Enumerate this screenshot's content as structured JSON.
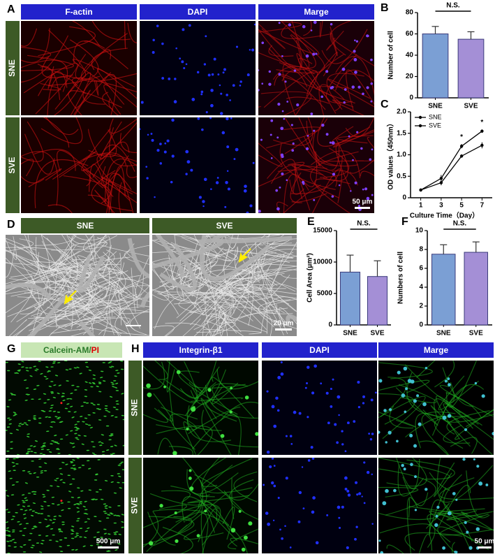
{
  "panels": {
    "A": {
      "label": "A",
      "headers": [
        "F-actin",
        "DAPI",
        "Marge"
      ],
      "rows": [
        "SNE",
        "SVE"
      ],
      "scale": "50 μm"
    },
    "D": {
      "label": "D",
      "headers": [
        "SNE",
        "SVE"
      ],
      "scale": "20 μm"
    },
    "G": {
      "label": "G",
      "header_parts": [
        "Calcein-AM/",
        "PI"
      ],
      "scale": "500 μm"
    },
    "H": {
      "label": "H",
      "headers": [
        "Integrin-β1",
        "DAPI",
        "Marge"
      ],
      "rows": [
        "SNE",
        "SVE"
      ],
      "scale": "50 μm"
    }
  },
  "chart_data": [
    {
      "panel": "B",
      "type": "bar",
      "ylabel": "Number of cell",
      "categories": [
        "SNE",
        "SVE"
      ],
      "values": [
        60,
        55
      ],
      "errors": [
        7,
        7
      ],
      "colors": [
        "#7b9fd4",
        "#a48fd6"
      ],
      "ylim": [
        0,
        80
      ],
      "yticks": [
        0,
        20,
        40,
        60,
        80
      ],
      "annotation": "N.S."
    },
    {
      "panel": "C",
      "type": "line",
      "ylabel": "OD values（450nm）",
      "xlabel": "Culture Time（Day）",
      "x": [
        1,
        3,
        5,
        7
      ],
      "xlim": [
        0,
        8
      ],
      "xticks": [
        1,
        3,
        5,
        7
      ],
      "ylim": [
        0,
        2
      ],
      "yticks": [
        0,
        0.5,
        {
          "value": 1,
          "label": "1.0"
        },
        1.5,
        {
          "value": 2,
          "label": "2.0"
        }
      ],
      "series": [
        {
          "name": "SNE",
          "color": "#000000",
          "values": [
            0.18,
            0.45,
            1.2,
            1.55
          ],
          "errors": [
            0.02,
            0.08,
            0.05,
            0.04
          ]
        },
        {
          "name": "SVE",
          "color": "#000000",
          "values": [
            0.18,
            0.35,
            0.97,
            1.22
          ],
          "errors": [
            0.02,
            0.06,
            0.04,
            0.07
          ]
        }
      ],
      "legend": "upper left",
      "annotations": [
        {
          "text": "*",
          "x": 5
        },
        {
          "text": "*",
          "x": 7
        }
      ]
    },
    {
      "panel": "E",
      "type": "bar",
      "ylabel": "Cell Area (μm²)",
      "categories": [
        "SNE",
        "SVE"
      ],
      "values": [
        8400,
        7700
      ],
      "errors": [
        2700,
        2500
      ],
      "colors": [
        "#7b9fd4",
        "#a48fd6"
      ],
      "ylim": [
        0,
        15000
      ],
      "yticks": [
        0,
        5000,
        10000,
        15000
      ],
      "annotation": "N.S."
    },
    {
      "panel": "F",
      "type": "bar",
      "ylabel": "Numbers of cell",
      "categories": [
        "SNE",
        "SVE"
      ],
      "values": [
        7.5,
        7.7
      ],
      "errors": [
        1.0,
        1.1
      ],
      "colors": [
        "#7b9fd4",
        "#a48fd6"
      ],
      "ylim": [
        0,
        10
      ],
      "yticks": [
        0,
        2,
        4,
        6,
        8,
        10
      ],
      "annotation": "N.S."
    }
  ]
}
